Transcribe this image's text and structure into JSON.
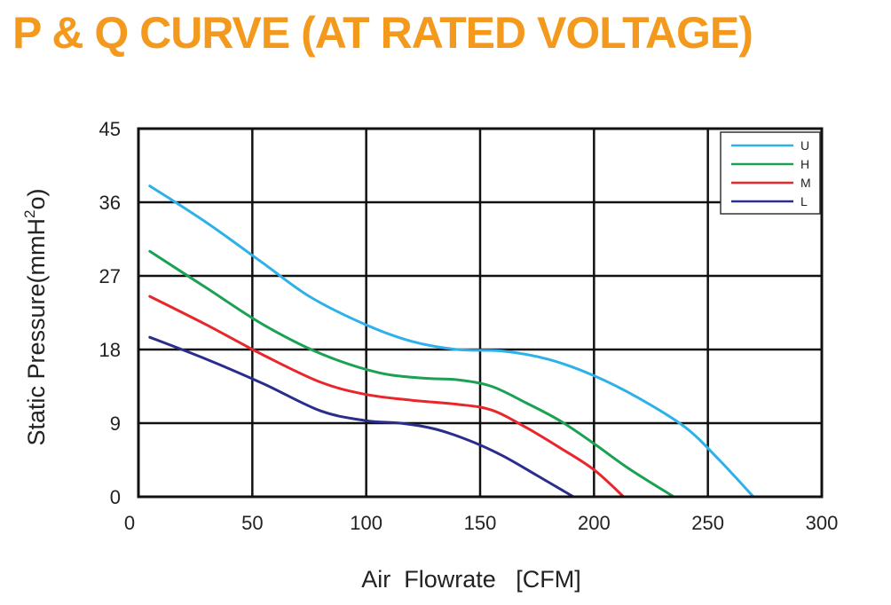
{
  "page": {
    "title": "P & Q CURVE (AT RATED VOLTAGE)"
  },
  "chart_data": {
    "type": "line",
    "xlabel": "Air  Flowrate   [CFM]",
    "ylabel_main": "Static Pressure(mmH",
    "ylabel_sup": "2",
    "ylabel_end": "o)",
    "xlim": [
      0,
      300
    ],
    "ylim": [
      0,
      45
    ],
    "x_ticks": [
      0,
      50,
      100,
      150,
      200,
      250,
      300
    ],
    "y_ticks": [
      0,
      9,
      18,
      27,
      36,
      45
    ],
    "grid": true,
    "legend_position": "top-right",
    "series": [
      {
        "name": "U",
        "color": "#2eb0e8",
        "points": [
          [
            5,
            38
          ],
          [
            30,
            33.5
          ],
          [
            55,
            28.5
          ],
          [
            75,
            24.5
          ],
          [
            100,
            21
          ],
          [
            120,
            19
          ],
          [
            140,
            18
          ],
          [
            160,
            17.8
          ],
          [
            180,
            16.8
          ],
          [
            200,
            14.8
          ],
          [
            220,
            12
          ],
          [
            240,
            8.5
          ],
          [
            255,
            4.5
          ],
          [
            270,
            0
          ]
        ]
      },
      {
        "name": "H",
        "color": "#1aa152",
        "points": [
          [
            5,
            30
          ],
          [
            30,
            25.5
          ],
          [
            55,
            21
          ],
          [
            80,
            17.5
          ],
          [
            105,
            15.2
          ],
          [
            125,
            14.5
          ],
          [
            140,
            14.3
          ],
          [
            155,
            13.5
          ],
          [
            170,
            11.5
          ],
          [
            185,
            9.3
          ],
          [
            200,
            6.5
          ],
          [
            215,
            3.5
          ],
          [
            235,
            0
          ]
        ]
      },
      {
        "name": "M",
        "color": "#e8262b",
        "points": [
          [
            5,
            24.5
          ],
          [
            30,
            21
          ],
          [
            55,
            17.3
          ],
          [
            80,
            14
          ],
          [
            100,
            12.5
          ],
          [
            120,
            11.8
          ],
          [
            140,
            11.3
          ],
          [
            155,
            10.6
          ],
          [
            170,
            8.5
          ],
          [
            185,
            6
          ],
          [
            200,
            3.3
          ],
          [
            213,
            0
          ]
        ]
      },
      {
        "name": "L",
        "color": "#2b2d8c",
        "points": [
          [
            5,
            19.5
          ],
          [
            30,
            16.8
          ],
          [
            55,
            13.8
          ],
          [
            80,
            10.5
          ],
          [
            100,
            9.3
          ],
          [
            115,
            9.0
          ],
          [
            130,
            8.3
          ],
          [
            145,
            6.9
          ],
          [
            160,
            5.0
          ],
          [
            175,
            2.6
          ],
          [
            191,
            0
          ]
        ]
      }
    ]
  }
}
